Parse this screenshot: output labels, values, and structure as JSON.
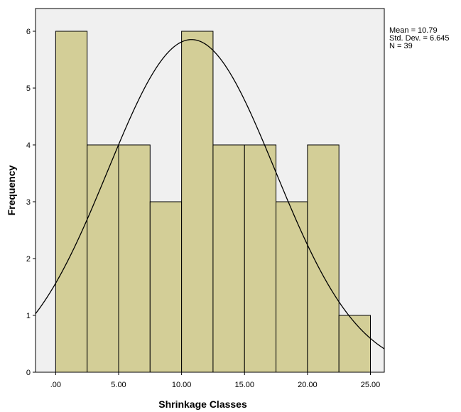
{
  "chart_data": {
    "type": "bar",
    "subtype": "histogram",
    "xlabel": "Shrinkage Classes",
    "ylabel": "Frequency",
    "bin_edges": [
      0,
      2.5,
      5,
      7.5,
      10,
      12.5,
      15,
      17.5,
      20,
      22.5,
      25
    ],
    "values": [
      6,
      4,
      4,
      3,
      6,
      4,
      4,
      3,
      4,
      1
    ],
    "xticks": [
      0,
      5,
      10,
      15,
      20,
      25
    ],
    "xtick_labels": [
      ".00",
      "5.00",
      "10.00",
      "15.00",
      "20.00",
      "25.00"
    ],
    "yticks": [
      0,
      1,
      2,
      3,
      4,
      5,
      6
    ],
    "ytick_labels": [
      "0",
      "1",
      "2",
      "3",
      "4",
      "5",
      "6"
    ],
    "xlim": [
      -1.6,
      26.1
    ],
    "ylim": [
      0,
      6.4
    ],
    "normal_curve": {
      "mean": 10.79,
      "std": 6.645,
      "n": 39,
      "bin_width": 2.5
    },
    "stats_lines": [
      "Mean = 10.79",
      "Std. Dev. = 6.645",
      "N = 39"
    ],
    "grid": false,
    "legend": "top-right"
  },
  "colors": {
    "plot_background": "#f0f0f0",
    "bar_fill": "#d3ce97",
    "bar_stroke": "#000000",
    "curve": "#000000",
    "axis": "#000000"
  }
}
